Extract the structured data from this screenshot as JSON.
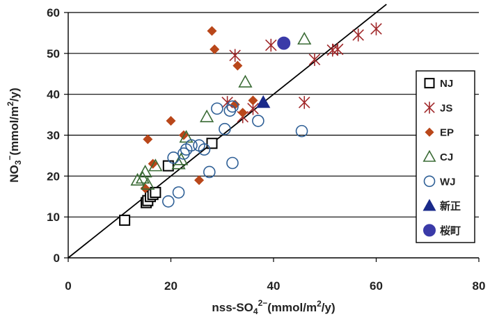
{
  "chart_data": {
    "type": "scatter",
    "xlabel": "nss-SO4 2-(mmol/m2/y)",
    "xlabel_parts": {
      "base": "nss-SO",
      "sub": "4",
      "sup": "2−",
      "tail": "(mmol/m",
      "tail_sup": "2",
      "tail_end": "/y)"
    },
    "ylabel": "NO3-(mmol/m2/y)",
    "ylabel_parts": {
      "base": "NO",
      "sub": "3",
      "sup": "−",
      "tail": "(mmol/m",
      "tail_sup": "2",
      "tail_end": "/y)"
    },
    "xlim": [
      0,
      80
    ],
    "ylim": [
      0,
      60
    ],
    "x_ticks": [
      0,
      20,
      40,
      60,
      80
    ],
    "y_ticks": [
      0,
      10,
      20,
      30,
      40,
      50,
      60
    ],
    "grid": "horizontal",
    "legend_position": "right",
    "reference_line": {
      "type": "y=x",
      "from": [
        0,
        0
      ],
      "to": [
        62,
        62
      ],
      "color": "#000000"
    },
    "series": [
      {
        "name": "NJ",
        "marker": "square-open",
        "color": "#000000",
        "points": [
          [
            11,
            9.2
          ],
          [
            15.2,
            13.5
          ],
          [
            15.5,
            14
          ],
          [
            16,
            15
          ],
          [
            16.5,
            15.5
          ],
          [
            17,
            16
          ],
          [
            19.5,
            22.5
          ],
          [
            28,
            28
          ]
        ]
      },
      {
        "name": "JS",
        "marker": "asterisk",
        "color": "#a0282a",
        "points": [
          [
            32.5,
            49.5
          ],
          [
            31,
            38
          ],
          [
            34,
            34.5
          ],
          [
            36,
            36.5
          ],
          [
            39.5,
            52
          ],
          [
            46,
            38
          ],
          [
            48,
            48.5
          ],
          [
            51.5,
            50.8
          ],
          [
            52.5,
            51
          ],
          [
            56.5,
            54.5
          ],
          [
            60,
            56
          ]
        ]
      },
      {
        "name": "EP",
        "marker": "diamond",
        "color": "#b9471a",
        "points": [
          [
            28,
            55.5
          ],
          [
            28.5,
            51
          ],
          [
            33,
            47
          ],
          [
            15.5,
            29
          ],
          [
            20,
            33.5
          ],
          [
            22.5,
            30
          ],
          [
            16.5,
            23
          ],
          [
            15,
            17
          ],
          [
            25.5,
            19
          ],
          [
            32.5,
            37.5
          ],
          [
            34,
            35.5
          ],
          [
            36,
            38.5
          ]
        ]
      },
      {
        "name": "CJ",
        "marker": "triangle-open",
        "color": "#3a6b35",
        "points": [
          [
            46,
            53.5
          ],
          [
            34.5,
            43
          ],
          [
            27,
            34.5
          ],
          [
            23,
            29.5
          ],
          [
            22,
            24
          ],
          [
            21.5,
            23
          ],
          [
            17,
            22.5
          ],
          [
            15,
            21
          ],
          [
            14.5,
            19.5
          ],
          [
            13.5,
            19
          ],
          [
            15.5,
            18
          ]
        ]
      },
      {
        "name": "WJ",
        "marker": "circle-open",
        "color": "#2e5f96",
        "points": [
          [
            29,
            36.5
          ],
          [
            31.5,
            36
          ],
          [
            32,
            37
          ],
          [
            30.5,
            31.5
          ],
          [
            37,
            33.5
          ],
          [
            45.5,
            31
          ],
          [
            20.5,
            24.5
          ],
          [
            22.5,
            25.5
          ],
          [
            23,
            26.5
          ],
          [
            24,
            27.5
          ],
          [
            25.5,
            27.5
          ],
          [
            26.5,
            26.5
          ],
          [
            27.5,
            21
          ],
          [
            32,
            23.2
          ],
          [
            21.5,
            16
          ],
          [
            19.5,
            13.8
          ]
        ]
      },
      {
        "name": "新正",
        "marker": "triangle-filled",
        "color": "#1a2a8a",
        "points": [
          [
            38,
            38
          ]
        ]
      },
      {
        "name": "桜町",
        "marker": "circle-filled",
        "color": "#3a3aa8",
        "points": [
          [
            42,
            52.5
          ]
        ]
      }
    ]
  }
}
